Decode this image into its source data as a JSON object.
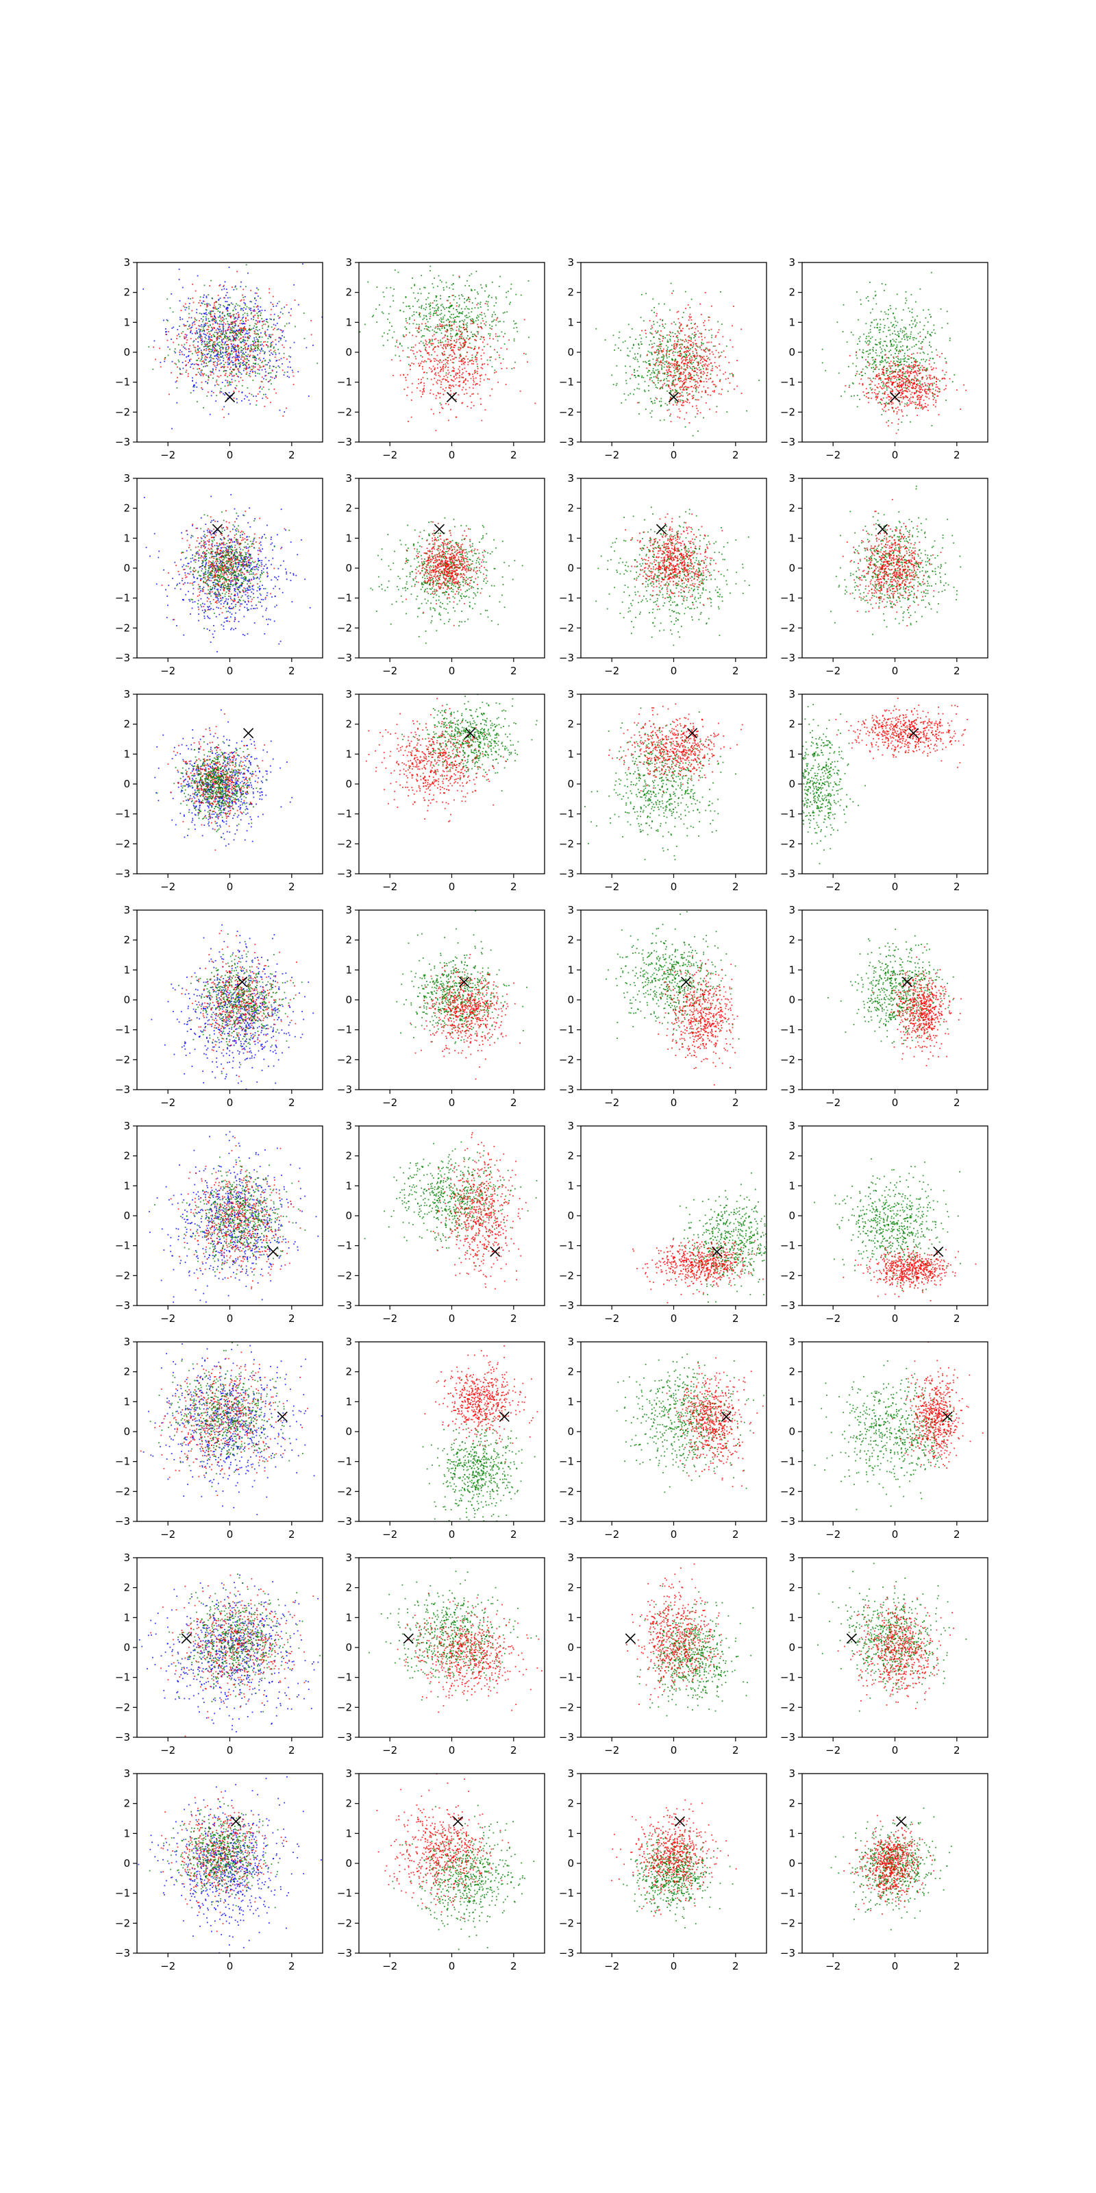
{
  "chart_data": {
    "type": "scatter",
    "layout": {
      "rows": 8,
      "cols": 4
    },
    "xlim": [
      -3,
      3
    ],
    "ylim": [
      -3,
      3
    ],
    "x_ticks": [
      -2,
      0,
      2
    ],
    "y_ticks": [
      -3,
      -2,
      -1,
      0,
      1,
      2,
      3
    ],
    "x_tick_labels": [
      "−2",
      "0",
      "2"
    ],
    "y_tick_labels": [
      "−3",
      "−2",
      "−1",
      "0",
      "1",
      "2",
      "3"
    ],
    "grid": false,
    "legend": "none",
    "colors": {
      "blue": "#0000ff",
      "red": "#ff0000",
      "green": "#008000",
      "marker": "#000000"
    },
    "marker_symbol": "x",
    "rows": [
      {
        "marker": [
          0.0,
          -1.5
        ],
        "panels": [
          {
            "clusters": [
              {
                "color": "blue",
                "cx": 0.0,
                "cy": 0.3,
                "sx": 0.95,
                "sy": 0.95,
                "n": 650
              },
              {
                "color": "red",
                "cx": 0.0,
                "cy": 0.3,
                "sx": 0.85,
                "sy": 0.85,
                "n": 500
              },
              {
                "color": "green",
                "cx": 0.0,
                "cy": 0.4,
                "sx": 0.85,
                "sy": 0.85,
                "n": 500
              }
            ]
          },
          {
            "clusters": [
              {
                "color": "green",
                "cx": 0.0,
                "cy": 1.1,
                "sx": 1.0,
                "sy": 0.7,
                "n": 550
              },
              {
                "color": "red",
                "cx": 0.0,
                "cy": -0.3,
                "sx": 0.8,
                "sy": 0.75,
                "n": 550
              }
            ]
          },
          {
            "clusters": [
              {
                "color": "green",
                "cx": -0.2,
                "cy": -0.4,
                "sx": 0.75,
                "sy": 0.85,
                "n": 500
              },
              {
                "color": "red",
                "cx": 0.5,
                "cy": -0.4,
                "sx": 0.6,
                "sy": 0.8,
                "n": 550
              }
            ]
          },
          {
            "clusters": [
              {
                "color": "green",
                "cx": 0.0,
                "cy": 0.0,
                "sx": 0.75,
                "sy": 0.95,
                "n": 550
              },
              {
                "color": "red",
                "cx": 0.3,
                "cy": -1.1,
                "sx": 0.65,
                "sy": 0.45,
                "n": 550
              }
            ]
          }
        ]
      },
      {
        "marker": [
          -0.4,
          1.3
        ],
        "panels": [
          {
            "clusters": [
              {
                "color": "blue",
                "cx": 0.0,
                "cy": -0.2,
                "sx": 0.9,
                "sy": 0.95,
                "n": 650
              },
              {
                "color": "red",
                "cx": -0.2,
                "cy": 0.1,
                "sx": 0.6,
                "sy": 0.7,
                "n": 450
              },
              {
                "color": "green",
                "cx": -0.2,
                "cy": 0.0,
                "sx": 0.55,
                "sy": 0.6,
                "n": 500
              }
            ]
          },
          {
            "clusters": [
              {
                "color": "green",
                "cx": -0.2,
                "cy": -0.2,
                "sx": 0.8,
                "sy": 0.75,
                "n": 550
              },
              {
                "color": "red",
                "cx": -0.2,
                "cy": 0.1,
                "sx": 0.45,
                "sy": 0.45,
                "n": 550
              }
            ]
          },
          {
            "clusters": [
              {
                "color": "green",
                "cx": 0.0,
                "cy": -0.2,
                "sx": 0.9,
                "sy": 0.85,
                "n": 550
              },
              {
                "color": "red",
                "cx": 0.0,
                "cy": 0.2,
                "sx": 0.55,
                "sy": 0.55,
                "n": 550
              }
            ]
          },
          {
            "clusters": [
              {
                "color": "green",
                "cx": 0.0,
                "cy": 0.0,
                "sx": 0.8,
                "sy": 0.8,
                "n": 550
              },
              {
                "color": "red",
                "cx": -0.1,
                "cy": 0.0,
                "sx": 0.5,
                "sy": 0.6,
                "n": 550
              }
            ]
          }
        ]
      },
      {
        "marker": [
          0.6,
          1.7
        ],
        "panels": [
          {
            "clusters": [
              {
                "color": "blue",
                "cx": -0.3,
                "cy": 0.0,
                "sx": 0.75,
                "sy": 0.8,
                "n": 600
              },
              {
                "color": "red",
                "cx": -0.4,
                "cy": 0.1,
                "sx": 0.55,
                "sy": 0.6,
                "n": 450
              },
              {
                "color": "green",
                "cx": -0.4,
                "cy": 0.0,
                "sx": 0.5,
                "sy": 0.55,
                "n": 550
              }
            ]
          },
          {
            "clusters": [
              {
                "color": "green",
                "cx": 0.6,
                "cy": 1.5,
                "sx": 0.7,
                "sy": 0.55,
                "n": 550
              },
              {
                "color": "red",
                "cx": -0.5,
                "cy": 0.7,
                "sx": 0.75,
                "sy": 0.7,
                "n": 550
              }
            ]
          },
          {
            "clusters": [
              {
                "color": "green",
                "cx": -0.4,
                "cy": 0.0,
                "sx": 0.85,
                "sy": 0.9,
                "n": 550
              },
              {
                "color": "red",
                "cx": 0.0,
                "cy": 1.2,
                "sx": 0.75,
                "sy": 0.5,
                "n": 550
              }
            ]
          },
          {
            "clusters": [
              {
                "color": "green",
                "cx": -2.6,
                "cy": 0.1,
                "sx": 0.55,
                "sy": 0.9,
                "n": 550
              },
              {
                "color": "red",
                "cx": 0.4,
                "cy": 1.7,
                "sx": 0.8,
                "sy": 0.35,
                "n": 550
              }
            ]
          }
        ]
      },
      {
        "marker": [
          0.4,
          0.6
        ],
        "panels": [
          {
            "clusters": [
              {
                "color": "blue",
                "cx": 0.3,
                "cy": -0.5,
                "sx": 0.85,
                "sy": 1.0,
                "n": 650
              },
              {
                "color": "red",
                "cx": 0.3,
                "cy": -0.1,
                "sx": 0.7,
                "sy": 0.75,
                "n": 450
              },
              {
                "color": "green",
                "cx": 0.3,
                "cy": 0.0,
                "sx": 0.65,
                "sy": 0.7,
                "n": 500
              }
            ]
          },
          {
            "clusters": [
              {
                "color": "green",
                "cx": 0.1,
                "cy": 0.3,
                "sx": 0.7,
                "sy": 0.7,
                "n": 550
              },
              {
                "color": "red",
                "cx": 0.5,
                "cy": -0.4,
                "sx": 0.6,
                "sy": 0.6,
                "n": 550
              }
            ]
          },
          {
            "clusters": [
              {
                "color": "green",
                "cx": -0.1,
                "cy": 0.6,
                "sx": 0.8,
                "sy": 0.75,
                "n": 550
              },
              {
                "color": "red",
                "cx": 0.9,
                "cy": -0.5,
                "sx": 0.5,
                "sy": 0.7,
                "n": 550
              }
            ]
          },
          {
            "clusters": [
              {
                "color": "green",
                "cx": 0.1,
                "cy": 0.3,
                "sx": 0.65,
                "sy": 0.75,
                "n": 550
              },
              {
                "color": "red",
                "cx": 0.9,
                "cy": -0.4,
                "sx": 0.4,
                "sy": 0.6,
                "n": 550
              }
            ]
          }
        ]
      },
      {
        "marker": [
          1.4,
          -1.2
        ],
        "panels": [
          {
            "clusters": [
              {
                "color": "blue",
                "cx": 0.1,
                "cy": -0.2,
                "sx": 0.95,
                "sy": 1.0,
                "n": 650
              },
              {
                "color": "red",
                "cx": 0.3,
                "cy": -0.2,
                "sx": 0.75,
                "sy": 0.85,
                "n": 500
              },
              {
                "color": "green",
                "cx": 0.3,
                "cy": 0.0,
                "sx": 0.7,
                "sy": 0.75,
                "n": 500
              }
            ]
          },
          {
            "clusters": [
              {
                "color": "green",
                "cx": 0.0,
                "cy": 0.6,
                "sx": 0.8,
                "sy": 0.7,
                "n": 550
              },
              {
                "color": "red",
                "cx": 0.9,
                "cy": 0.0,
                "sx": 0.55,
                "sy": 0.95,
                "n": 550
              }
            ]
          },
          {
            "clusters": [
              {
                "color": "green",
                "cx": 1.9,
                "cy": -0.9,
                "sx": 0.7,
                "sy": 0.7,
                "n": 550
              },
              {
                "color": "red",
                "cx": 0.8,
                "cy": -1.6,
                "sx": 0.75,
                "sy": 0.35,
                "n": 550
              }
            ]
          },
          {
            "clusters": [
              {
                "color": "green",
                "cx": 0.0,
                "cy": -0.3,
                "sx": 0.75,
                "sy": 0.75,
                "n": 550
              },
              {
                "color": "red",
                "cx": 0.5,
                "cy": -1.8,
                "sx": 0.6,
                "sy": 0.3,
                "n": 550
              }
            ]
          }
        ]
      },
      {
        "marker": [
          1.7,
          0.5
        ],
        "panels": [
          {
            "clusters": [
              {
                "color": "blue",
                "cx": -0.1,
                "cy": 0.3,
                "sx": 1.05,
                "sy": 1.05,
                "n": 650
              },
              {
                "color": "red",
                "cx": -0.2,
                "cy": 0.5,
                "sx": 0.85,
                "sy": 0.85,
                "n": 500
              },
              {
                "color": "green",
                "cx": -0.1,
                "cy": 0.5,
                "sx": 0.8,
                "sy": 0.8,
                "n": 500
              }
            ]
          },
          {
            "clusters": [
              {
                "color": "green",
                "cx": 0.8,
                "cy": -1.3,
                "sx": 0.6,
                "sy": 0.75,
                "n": 550
              },
              {
                "color": "red",
                "cx": 1.0,
                "cy": 1.0,
                "sx": 0.6,
                "sy": 0.55,
                "n": 550
              }
            ]
          },
          {
            "clusters": [
              {
                "color": "green",
                "cx": 0.3,
                "cy": 0.4,
                "sx": 0.85,
                "sy": 0.85,
                "n": 550
              },
              {
                "color": "red",
                "cx": 1.2,
                "cy": 0.4,
                "sx": 0.5,
                "sy": 0.75,
                "n": 550
              }
            ]
          },
          {
            "clusters": [
              {
                "color": "green",
                "cx": 0.0,
                "cy": 0.0,
                "sx": 0.9,
                "sy": 0.85,
                "n": 550
              },
              {
                "color": "red",
                "cx": 1.3,
                "cy": 0.5,
                "sx": 0.4,
                "sy": 0.7,
                "n": 550
              }
            ]
          }
        ]
      },
      {
        "marker": [
          -1.4,
          0.3
        ],
        "panels": [
          {
            "clusters": [
              {
                "color": "blue",
                "cx": 0.1,
                "cy": -0.1,
                "sx": 1.05,
                "sy": 1.0,
                "n": 650
              },
              {
                "color": "red",
                "cx": 0.2,
                "cy": 0.1,
                "sx": 0.85,
                "sy": 0.8,
                "n": 500
              },
              {
                "color": "green",
                "cx": 0.2,
                "cy": 0.2,
                "sx": 0.8,
                "sy": 0.75,
                "n": 500
              }
            ]
          },
          {
            "clusters": [
              {
                "color": "green",
                "cx": 0.0,
                "cy": 0.4,
                "sx": 0.85,
                "sy": 0.75,
                "n": 550
              },
              {
                "color": "red",
                "cx": 0.6,
                "cy": -0.3,
                "sx": 0.75,
                "sy": 0.65,
                "n": 550
              }
            ]
          },
          {
            "clusters": [
              {
                "color": "green",
                "cx": 0.6,
                "cy": -0.3,
                "sx": 0.65,
                "sy": 0.75,
                "n": 550
              },
              {
                "color": "red",
                "cx": 0.1,
                "cy": 0.3,
                "sx": 0.6,
                "sy": 0.8,
                "n": 550
              }
            ]
          },
          {
            "clusters": [
              {
                "color": "green",
                "cx": -0.1,
                "cy": 0.3,
                "sx": 0.8,
                "sy": 0.8,
                "n": 550
              },
              {
                "color": "red",
                "cx": 0.1,
                "cy": -0.1,
                "sx": 0.6,
                "sy": 0.75,
                "n": 550
              }
            ]
          }
        ]
      },
      {
        "marker": [
          0.2,
          1.4
        ],
        "panels": [
          {
            "clusters": [
              {
                "color": "blue",
                "cx": -0.1,
                "cy": -0.1,
                "sx": 0.95,
                "sy": 0.95,
                "n": 650
              },
              {
                "color": "red",
                "cx": -0.3,
                "cy": 0.3,
                "sx": 0.7,
                "sy": 0.75,
                "n": 450
              },
              {
                "color": "green",
                "cx": -0.3,
                "cy": 0.3,
                "sx": 0.65,
                "sy": 0.7,
                "n": 500
              }
            ]
          },
          {
            "clusters": [
              {
                "color": "green",
                "cx": 0.5,
                "cy": -0.5,
                "sx": 0.75,
                "sy": 0.75,
                "n": 550
              },
              {
                "color": "red",
                "cx": -0.3,
                "cy": 0.4,
                "sx": 0.75,
                "sy": 0.75,
                "n": 550
              }
            ]
          },
          {
            "clusters": [
              {
                "color": "green",
                "cx": 0.0,
                "cy": -0.4,
                "sx": 0.55,
                "sy": 0.6,
                "n": 550
              },
              {
                "color": "red",
                "cx": 0.0,
                "cy": 0.3,
                "sx": 0.6,
                "sy": 0.7,
                "n": 550
              }
            ]
          },
          {
            "clusters": [
              {
                "color": "green",
                "cx": 0.0,
                "cy": -0.1,
                "sx": 0.6,
                "sy": 0.65,
                "n": 550
              },
              {
                "color": "red",
                "cx": -0.1,
                "cy": 0.0,
                "sx": 0.45,
                "sy": 0.55,
                "n": 550
              }
            ]
          }
        ]
      }
    ]
  }
}
